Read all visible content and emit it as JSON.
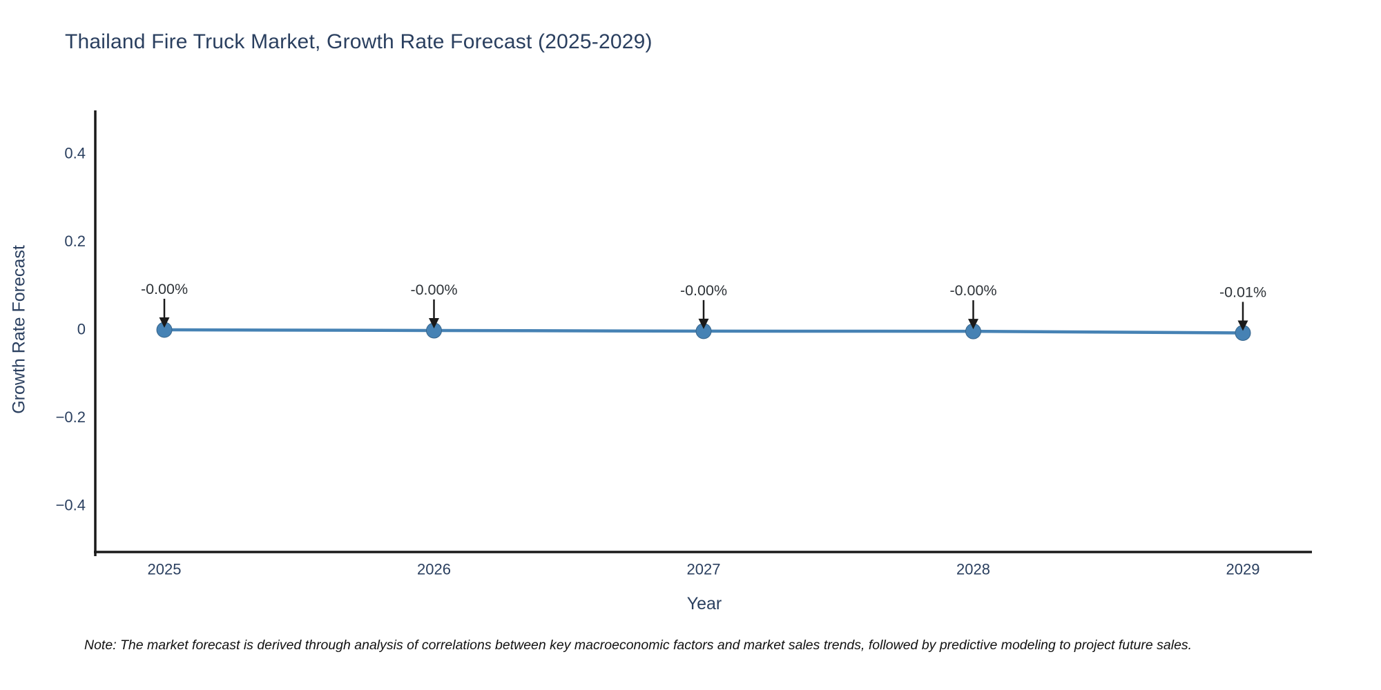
{
  "title": "Thailand Fire Truck Market, Growth Rate Forecast (2025-2029)",
  "note": "Note: The market forecast is derived through analysis of correlations between key macroeconomic factors and market sales trends, followed by predictive modeling to project future sales.",
  "colors": {
    "background": "#ffffff",
    "title_text": "#2a3f5f",
    "axis_text": "#2a3f5f",
    "axis_line": "#1a1a1a",
    "line": "#4682B4",
    "marker_fill": "#4682B4",
    "marker_edge": "#36648B",
    "annotation_text": "#2e3338",
    "annotation_arrow": "#1a1a1a",
    "note_text": "#111111"
  },
  "chart_data": {
    "type": "line",
    "title": "Thailand Fire Truck Market, Growth Rate Forecast (2025-2029)",
    "xlabel": "Year",
    "ylabel": "Growth Rate Forecast",
    "x": [
      2025,
      2026,
      2027,
      2028,
      2029
    ],
    "x_tick_labels": [
      "2025",
      "2026",
      "2027",
      "2028",
      "2029"
    ],
    "y": [
      -0.0016,
      -0.0031,
      -0.0045,
      -0.0049,
      -0.0086
    ],
    "point_labels": [
      "-0.00%",
      "-0.00%",
      "-0.00%",
      "-0.00%",
      "-0.01%"
    ],
    "yticks": [
      0.4,
      0.2,
      0,
      -0.2,
      -0.4
    ],
    "ytick_labels": [
      "0.4",
      "0.2",
      "0",
      "−0.2",
      "−0.4"
    ],
    "ylim": [
      -0.5,
      0.5
    ],
    "grid": false,
    "legend_position": "none",
    "annotations_have_arrows": true
  }
}
